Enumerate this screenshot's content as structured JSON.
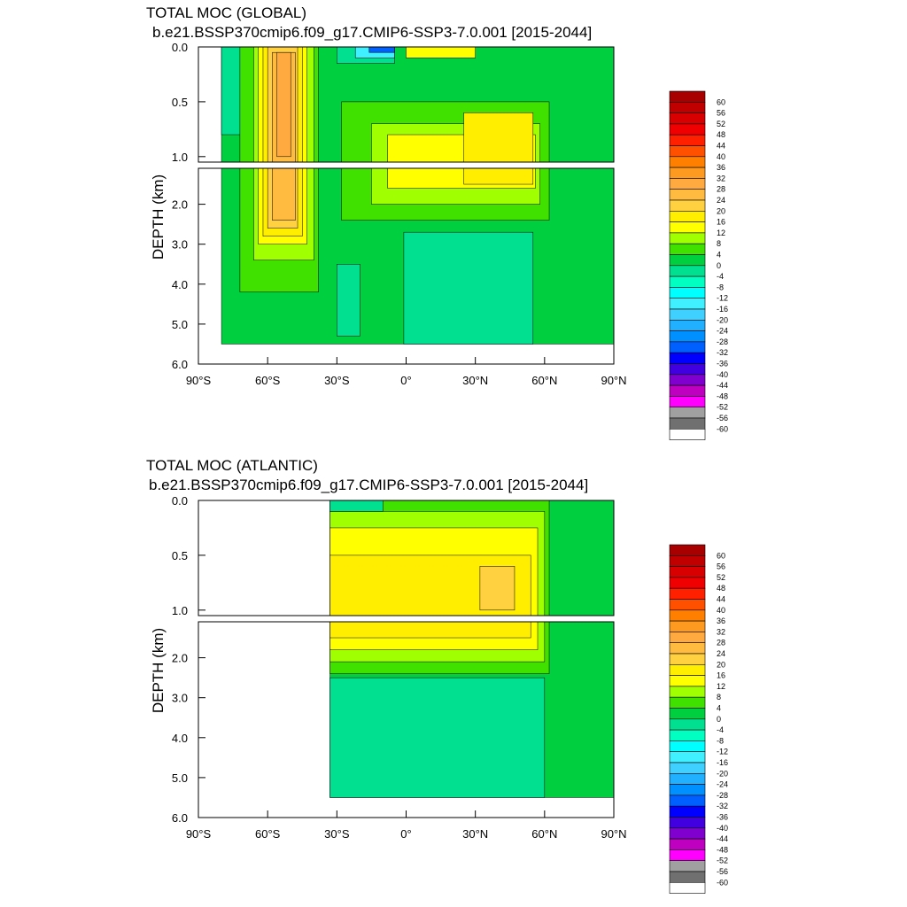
{
  "chart_data": [
    {
      "type": "heatmap",
      "title": "TOTAL MOC (GLOBAL)",
      "subtitle": "b.e21.BSSP370cmip6.f09_g17.CMIP6-SSP3-7.0.001 [2015-2044]",
      "xlabel": "",
      "ylabel": "DEPTH (km)",
      "xlim": [
        -90,
        90
      ],
      "ylim": [
        6.0,
        0.0
      ],
      "xticks": [
        -90,
        -60,
        -30,
        0,
        30,
        60,
        90
      ],
      "xtick_labels": [
        "90°S",
        "60°S",
        "30°S",
        "0°",
        "30°N",
        "60°N",
        "90°N"
      ],
      "yticks_top": [
        0.0,
        0.5,
        1.0
      ],
      "yticks_top_labels": [
        "0.0",
        "0.5",
        "1.0"
      ],
      "yticks_bottom": [
        2.0,
        3.0,
        4.0,
        5.0,
        6.0
      ],
      "yticks_bottom_labels": [
        "2.0",
        "3.0",
        "4.0",
        "5.0",
        "6.0"
      ],
      "regions": [
        {
          "level": 0,
          "x": [
            -80,
            90
          ],
          "y": [
            0.0,
            5.5
          ]
        },
        {
          "level": -4,
          "x": [
            -80,
            -70
          ],
          "y": [
            0.0,
            0.8
          ]
        },
        {
          "level": 4,
          "x": [
            -72,
            -38
          ],
          "y": [
            0.0,
            4.2
          ]
        },
        {
          "level": 8,
          "x": [
            -66,
            -40
          ],
          "y": [
            0.0,
            3.4
          ]
        },
        {
          "level": 12,
          "x": [
            -64,
            -43
          ],
          "y": [
            0.0,
            3.0
          ]
        },
        {
          "level": 16,
          "x": [
            -62,
            -45
          ],
          "y": [
            0.0,
            2.8
          ]
        },
        {
          "level": 20,
          "x": [
            -60,
            -47
          ],
          "y": [
            0.0,
            2.6
          ]
        },
        {
          "level": 24,
          "x": [
            -58,
            -48
          ],
          "y": [
            0.05,
            2.4
          ]
        },
        {
          "level": 28,
          "x": [
            -56,
            -50
          ],
          "y": [
            0.05,
            1.0
          ]
        },
        {
          "level": -4,
          "x": [
            -30,
            -5
          ],
          "y": [
            0.0,
            0.15
          ]
        },
        {
          "level": -16,
          "x": [
            -22,
            -5
          ],
          "y": [
            0.0,
            0.1
          ]
        },
        {
          "level": -32,
          "x": [
            -16,
            -5
          ],
          "y": [
            0.0,
            0.05
          ]
        },
        {
          "level": 4,
          "x": [
            -28,
            62
          ],
          "y": [
            0.5,
            2.4
          ]
        },
        {
          "level": 8,
          "x": [
            -15,
            58
          ],
          "y": [
            0.7,
            2.0
          ]
        },
        {
          "level": 12,
          "x": [
            -8,
            56
          ],
          "y": [
            0.8,
            1.6
          ]
        },
        {
          "level": 16,
          "x": [
            25,
            55
          ],
          "y": [
            0.6,
            1.5
          ]
        },
        {
          "level": 12,
          "x": [
            0,
            30
          ],
          "y": [
            0.0,
            0.1
          ]
        },
        {
          "level": -4,
          "x": [
            -1,
            55
          ],
          "y": [
            2.7,
            5.5
          ]
        },
        {
          "level": -4,
          "x": [
            -30,
            -20
          ],
          "y": [
            3.5,
            5.3
          ]
        }
      ]
    },
    {
      "type": "heatmap",
      "title": "TOTAL MOC (ATLANTIC)",
      "subtitle": "b.e21.BSSP370cmip6.f09_g17.CMIP6-SSP3-7.0.001 [2015-2044]",
      "xlabel": "",
      "ylabel": "DEPTH (km)",
      "xlim": [
        -90,
        90
      ],
      "ylim": [
        6.0,
        0.0
      ],
      "xticks": [
        -90,
        -60,
        -30,
        0,
        30,
        60,
        90
      ],
      "xtick_labels": [
        "90°S",
        "60°S",
        "30°S",
        "0°",
        "30°N",
        "60°N",
        "90°N"
      ],
      "yticks_top": [
        0.0,
        0.5,
        1.0
      ],
      "yticks_top_labels": [
        "0.0",
        "0.5",
        "1.0"
      ],
      "yticks_bottom": [
        2.0,
        3.0,
        4.0,
        5.0,
        6.0
      ],
      "yticks_bottom_labels": [
        "2.0",
        "3.0",
        "4.0",
        "5.0",
        "6.0"
      ],
      "regions": [
        {
          "level": 0,
          "x": [
            -33,
            90
          ],
          "y": [
            0.0,
            5.5
          ]
        },
        {
          "level": 4,
          "x": [
            -33,
            62
          ],
          "y": [
            0.0,
            2.4
          ]
        },
        {
          "level": 8,
          "x": [
            -33,
            60
          ],
          "y": [
            0.1,
            2.1
          ]
        },
        {
          "level": 12,
          "x": [
            -33,
            57
          ],
          "y": [
            0.25,
            1.8
          ]
        },
        {
          "level": 16,
          "x": [
            -33,
            54
          ],
          "y": [
            0.5,
            1.5
          ]
        },
        {
          "level": 20,
          "x": [
            32,
            47
          ],
          "y": [
            0.6,
            1.0
          ]
        },
        {
          "level": -4,
          "x": [
            -33,
            60
          ],
          "y": [
            2.5,
            5.5
          ]
        },
        {
          "level": -4,
          "x": [
            -33,
            -10
          ],
          "y": [
            0.0,
            0.1
          ]
        }
      ]
    }
  ],
  "colorbar": {
    "levels": [
      60,
      56,
      52,
      48,
      44,
      40,
      36,
      32,
      28,
      24,
      20,
      16,
      12,
      8,
      4,
      0,
      -4,
      -8,
      -12,
      -16,
      -20,
      -24,
      -28,
      -32,
      -36,
      -40,
      -44,
      -48,
      -52,
      -56,
      -60
    ],
    "labels": [
      "60",
      "56",
      "52",
      "48",
      "44",
      "40",
      "36",
      "32",
      "28",
      "24",
      "20",
      "16",
      "12",
      "8",
      "4",
      "0",
      "-4",
      "-8",
      "-12",
      "-16",
      "-20",
      "-24",
      "-28",
      "-32",
      "-36",
      "-40",
      "-44",
      "-48",
      "-52",
      "-56",
      "-60"
    ],
    "colors": [
      "#a80000",
      "#c00000",
      "#d80000",
      "#f00000",
      "#ff2000",
      "#ff5000",
      "#ff8000",
      "#ff9a20",
      "#ffaa40",
      "#ffbb40",
      "#ffd040",
      "#ffee00",
      "#ffff00",
      "#a0ff00",
      "#40e000",
      "#00d040",
      "#00e090",
      "#00ffc0",
      "#00ffff",
      "#40f0ff",
      "#40d0ff",
      "#20b0ff",
      "#0090ff",
      "#0060ff",
      "#0000ff",
      "#4000e0",
      "#8000d0",
      "#c000c0",
      "#ff00ff",
      "#a0a0a0",
      "#707070",
      "#ffffff"
    ]
  }
}
